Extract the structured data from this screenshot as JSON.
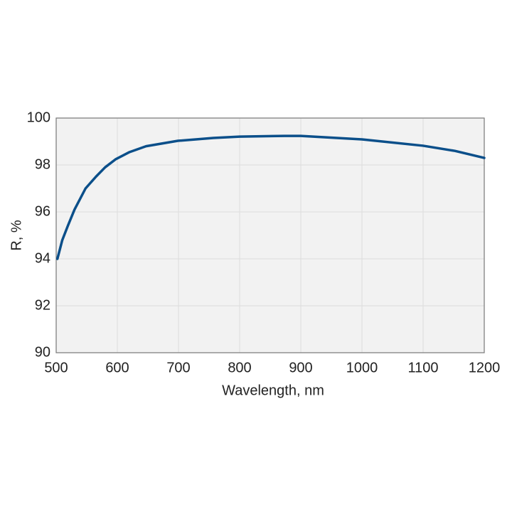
{
  "chart_data": {
    "type": "line",
    "xlabel": "Wavelength, nm",
    "ylabel": "R, %",
    "x": [
      502,
      510,
      519,
      530,
      548,
      565,
      580,
      597,
      620,
      647,
      699,
      757,
      800,
      873,
      900,
      1000,
      1100,
      1152,
      1200
    ],
    "series": [
      {
        "color": "#0b4f8a",
        "values": [
          94.0,
          94.8,
          95.4,
          96.1,
          97.0,
          97.5,
          97.9,
          98.24,
          98.55,
          98.8,
          99.03,
          99.15,
          99.21,
          99.24,
          99.24,
          99.09,
          98.82,
          98.6,
          98.3
        ]
      }
    ],
    "xlim": [
      500,
      1200
    ],
    "xticks": [
      500,
      600,
      700,
      800,
      900,
      1000,
      1100,
      1200
    ],
    "ylim": [
      90,
      100
    ],
    "yticks": [
      90,
      92,
      94,
      96,
      98,
      100
    ],
    "grid": true
  }
}
